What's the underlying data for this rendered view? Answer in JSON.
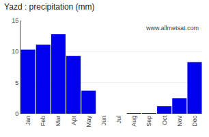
{
  "chart_data": {
    "type": "bar",
    "title": "Yazd : precipitation (mm)",
    "categories": [
      "Jan",
      "Feb",
      "Mar",
      "Apr",
      "May",
      "Jun",
      "Jul",
      "Aug",
      "Sep",
      "Oct",
      "Nov",
      "Dec"
    ],
    "values": [
      10.3,
      11.1,
      12.8,
      9.3,
      3.7,
      0.0,
      0.0,
      0.05,
      0.05,
      1.2,
      2.5,
      8.3
    ],
    "color": "#0000ee",
    "ylim": [
      0,
      15
    ],
    "yticks": [
      0,
      5,
      10,
      15
    ],
    "grid": true,
    "annotations": [
      "www.allmetsat.com"
    ]
  }
}
